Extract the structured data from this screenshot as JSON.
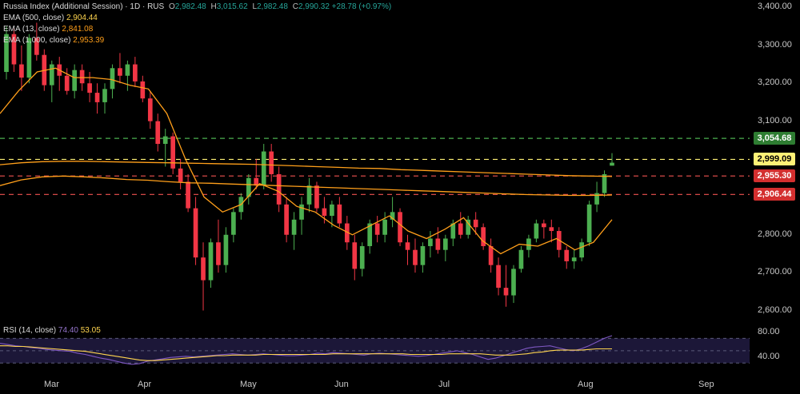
{
  "header": {
    "symbol_line": "Russia Index (Additional Session) · 1D · RUS",
    "ohlc": {
      "O": "2,982.48",
      "H": "3,015.62",
      "L": "2,982.48",
      "C": "2,990.32",
      "change": "+28.78 (+0.97%)"
    }
  },
  "indicators": [
    {
      "label": "EMA (500, close)",
      "value": "2,904.44",
      "color": "#ffd54f"
    },
    {
      "label": "EMA (13, close)",
      "value": "2,841.08",
      "color": "#ff9f1a"
    },
    {
      "label": "EMA (1,000, close)",
      "value": "2,953.39",
      "color": "#ff9f1a"
    }
  ],
  "rsi": {
    "label": "RSI (14, close)",
    "value": "74.40",
    "ma_value": "53.05",
    "color": "#7e57c2",
    "ma_color": "#ffd54f"
  },
  "price_badges": [
    {
      "value": "3,054.68",
      "bg": "#2e7d32",
      "fg": "#ffffff",
      "line": "#4caf50"
    },
    {
      "value": "2,999.09",
      "bg": "#fff176",
      "fg": "#000000",
      "line": "#fff176"
    },
    {
      "value": "2,955.30",
      "bg": "#d32f2f",
      "fg": "#ffffff",
      "line": "#ef5350"
    },
    {
      "value": "2,906.44",
      "bg": "#d32f2f",
      "fg": "#ffffff",
      "line": "#ef5350"
    }
  ],
  "colors": {
    "up": "#4caf50",
    "down": "#f23645",
    "ema_fast": "#ff9f1a",
    "ema_slow": "#ff9f1a"
  },
  "chart_data": {
    "type": "candlestick",
    "y_ticks": [
      "3,400.00",
      "3,300.00",
      "3,200.00",
      "3,100.00",
      "2,800.00",
      "2,700.00",
      "2,600.00"
    ],
    "ylim": [
      2580,
      3420
    ],
    "rsi_ticks": [
      "80.00",
      "40.00"
    ],
    "rsi_ylim": [
      20,
      90
    ],
    "rsi_bands": [
      70,
      50,
      30
    ],
    "x_ticks": [
      "Mar",
      "Apr",
      "May",
      "Jun",
      "Jul",
      "Aug",
      "Sep"
    ],
    "levels": [
      3054.68,
      2999.09,
      2955.3,
      2906.44
    ],
    "ema_1000": [
      2985,
      2990,
      2993,
      2994,
      2994,
      2993,
      2992,
      2991,
      2990,
      2989,
      2988,
      2987,
      2986,
      2984,
      2982,
      2980,
      2978,
      2976,
      2975,
      2972,
      2970,
      2968,
      2966,
      2964,
      2962,
      2960,
      2958,
      2956,
      2955,
      2954
    ],
    "ema_500": [
      2930,
      2945,
      2953,
      2955,
      2953,
      2950,
      2946,
      2944,
      2940,
      2937,
      2936,
      2934,
      2932,
      2930,
      2928,
      2926,
      2924,
      2922,
      2920,
      2918,
      2916,
      2914,
      2912,
      2910,
      2908,
      2906,
      2905,
      2904,
      2904,
      2905
    ],
    "ema_13": [
      3120,
      3180,
      3230,
      3240,
      3215,
      3215,
      3210,
      3195,
      3185,
      3120,
      3000,
      2900,
      2860,
      2880,
      2935,
      2915,
      2875,
      2860,
      2825,
      2800,
      2825,
      2850,
      2810,
      2790,
      2815,
      2845,
      2785,
      2750,
      2775,
      2770,
      2790,
      2760,
      2780,
      2840
    ],
    "candles": [
      [
        3230,
        3350,
        3210,
        3330
      ],
      [
        3330,
        3345,
        3230,
        3250
      ],
      [
        3250,
        3300,
        3180,
        3215
      ],
      [
        3215,
        3330,
        3200,
        3320
      ],
      [
        3320,
        3360,
        3260,
        3275
      ],
      [
        3275,
        3290,
        3180,
        3195
      ],
      [
        3195,
        3260,
        3150,
        3250
      ],
      [
        3250,
        3270,
        3180,
        3220
      ],
      [
        3220,
        3240,
        3170,
        3180
      ],
      [
        3180,
        3250,
        3160,
        3235
      ],
      [
        3235,
        3250,
        3180,
        3200
      ],
      [
        3200,
        3230,
        3150,
        3175
      ],
      [
        3175,
        3200,
        3120,
        3150
      ],
      [
        3150,
        3200,
        3120,
        3185
      ],
      [
        3185,
        3250,
        3160,
        3240
      ],
      [
        3240,
        3280,
        3200,
        3220
      ],
      [
        3220,
        3260,
        3180,
        3250
      ],
      [
        3250,
        3270,
        3190,
        3205
      ],
      [
        3205,
        3220,
        3150,
        3160
      ],
      [
        3160,
        3180,
        3080,
        3100
      ],
      [
        3100,
        3120,
        3020,
        3040
      ],
      [
        3040,
        3080,
        2980,
        3060
      ],
      [
        3060,
        3070,
        2960,
        2975
      ],
      [
        2975,
        3000,
        2920,
        2940
      ],
      [
        2940,
        2960,
        2860,
        2870
      ],
      [
        2870,
        2900,
        2720,
        2740
      ],
      [
        2740,
        2780,
        2600,
        2680
      ],
      [
        2680,
        2790,
        2660,
        2780
      ],
      [
        2780,
        2840,
        2700,
        2720
      ],
      [
        2720,
        2820,
        2700,
        2800
      ],
      [
        2800,
        2870,
        2780,
        2860
      ],
      [
        2860,
        2910,
        2840,
        2900
      ],
      [
        2900,
        2960,
        2880,
        2950
      ],
      [
        2950,
        3000,
        2920,
        2930
      ],
      [
        2930,
        3040,
        2920,
        3020
      ],
      [
        3020,
        3040,
        2940,
        2960
      ],
      [
        2960,
        2980,
        2860,
        2880
      ],
      [
        2880,
        2900,
        2780,
        2800
      ],
      [
        2800,
        2860,
        2760,
        2840
      ],
      [
        2840,
        2900,
        2800,
        2880
      ],
      [
        2880,
        2950,
        2860,
        2930
      ],
      [
        2930,
        2940,
        2860,
        2870
      ],
      [
        2870,
        2900,
        2830,
        2850
      ],
      [
        2850,
        2890,
        2820,
        2880
      ],
      [
        2880,
        2900,
        2820,
        2830
      ],
      [
        2830,
        2850,
        2760,
        2780
      ],
      [
        2780,
        2800,
        2680,
        2710
      ],
      [
        2710,
        2780,
        2690,
        2770
      ],
      [
        2770,
        2840,
        2750,
        2830
      ],
      [
        2830,
        2850,
        2780,
        2800
      ],
      [
        2800,
        2860,
        2780,
        2840
      ],
      [
        2840,
        2900,
        2820,
        2860
      ],
      [
        2860,
        2870,
        2770,
        2780
      ],
      [
        2780,
        2800,
        2720,
        2760
      ],
      [
        2760,
        2790,
        2700,
        2720
      ],
      [
        2720,
        2780,
        2700,
        2770
      ],
      [
        2770,
        2810,
        2740,
        2790
      ],
      [
        2790,
        2820,
        2750,
        2760
      ],
      [
        2760,
        2800,
        2730,
        2790
      ],
      [
        2790,
        2840,
        2770,
        2830
      ],
      [
        2830,
        2860,
        2790,
        2800
      ],
      [
        2800,
        2850,
        2790,
        2840
      ],
      [
        2840,
        2860,
        2800,
        2820
      ],
      [
        2820,
        2830,
        2760,
        2770
      ],
      [
        2770,
        2790,
        2700,
        2720
      ],
      [
        2720,
        2740,
        2640,
        2660
      ],
      [
        2660,
        2720,
        2610,
        2640
      ],
      [
        2640,
        2720,
        2620,
        2710
      ],
      [
        2710,
        2770,
        2700,
        2760
      ],
      [
        2760,
        2800,
        2740,
        2790
      ],
      [
        2790,
        2840,
        2780,
        2830
      ],
      [
        2830,
        2840,
        2790,
        2820
      ],
      [
        2820,
        2840,
        2780,
        2810
      ],
      [
        2810,
        2820,
        2740,
        2760
      ],
      [
        2760,
        2770,
        2710,
        2730
      ],
      [
        2730,
        2760,
        2710,
        2740
      ],
      [
        2740,
        2790,
        2730,
        2780
      ],
      [
        2780,
        2890,
        2770,
        2880
      ],
      [
        2880,
        2940,
        2860,
        2910
      ],
      [
        2910,
        2970,
        2900,
        2960
      ],
      [
        2982.48,
        3015.62,
        2982.48,
        2990.32
      ]
    ],
    "rsi": [
      62,
      60,
      58,
      57,
      55,
      54,
      52,
      51,
      50,
      49,
      46,
      44,
      41,
      38,
      36,
      33,
      30,
      28,
      29,
      33,
      35,
      37,
      39,
      40,
      41,
      40,
      41,
      42,
      43,
      44,
      45,
      44,
      43,
      44,
      45,
      44,
      43,
      42,
      42,
      43,
      44,
      46,
      45,
      47,
      46,
      45,
      44,
      43,
      45,
      46,
      45,
      44,
      43,
      42,
      41,
      42,
      44,
      46,
      48,
      50,
      47,
      44,
      40,
      36,
      38,
      42,
      46,
      50,
      54,
      56,
      57,
      58,
      55,
      52,
      50,
      53,
      58,
      64,
      70,
      74.4
    ],
    "rsi_ma": [
      58,
      58,
      57,
      57,
      56,
      55,
      54,
      53,
      52,
      51,
      50,
      49,
      47,
      45,
      43,
      41,
      39,
      37,
      35,
      34,
      34,
      35,
      36,
      37,
      38,
      39,
      40,
      41,
      42,
      42,
      43,
      43,
      43,
      43,
      44,
      44,
      44,
      44,
      44,
      44,
      44,
      44,
      44,
      45,
      45,
      45,
      45,
      45,
      45,
      45,
      45,
      45,
      45,
      44,
      44,
      44,
      44,
      44,
      45,
      45,
      45,
      45,
      45,
      44,
      43,
      43,
      43,
      44,
      45,
      47,
      48,
      50,
      51,
      51,
      51,
      51,
      52,
      53,
      53,
      53.05
    ]
  }
}
